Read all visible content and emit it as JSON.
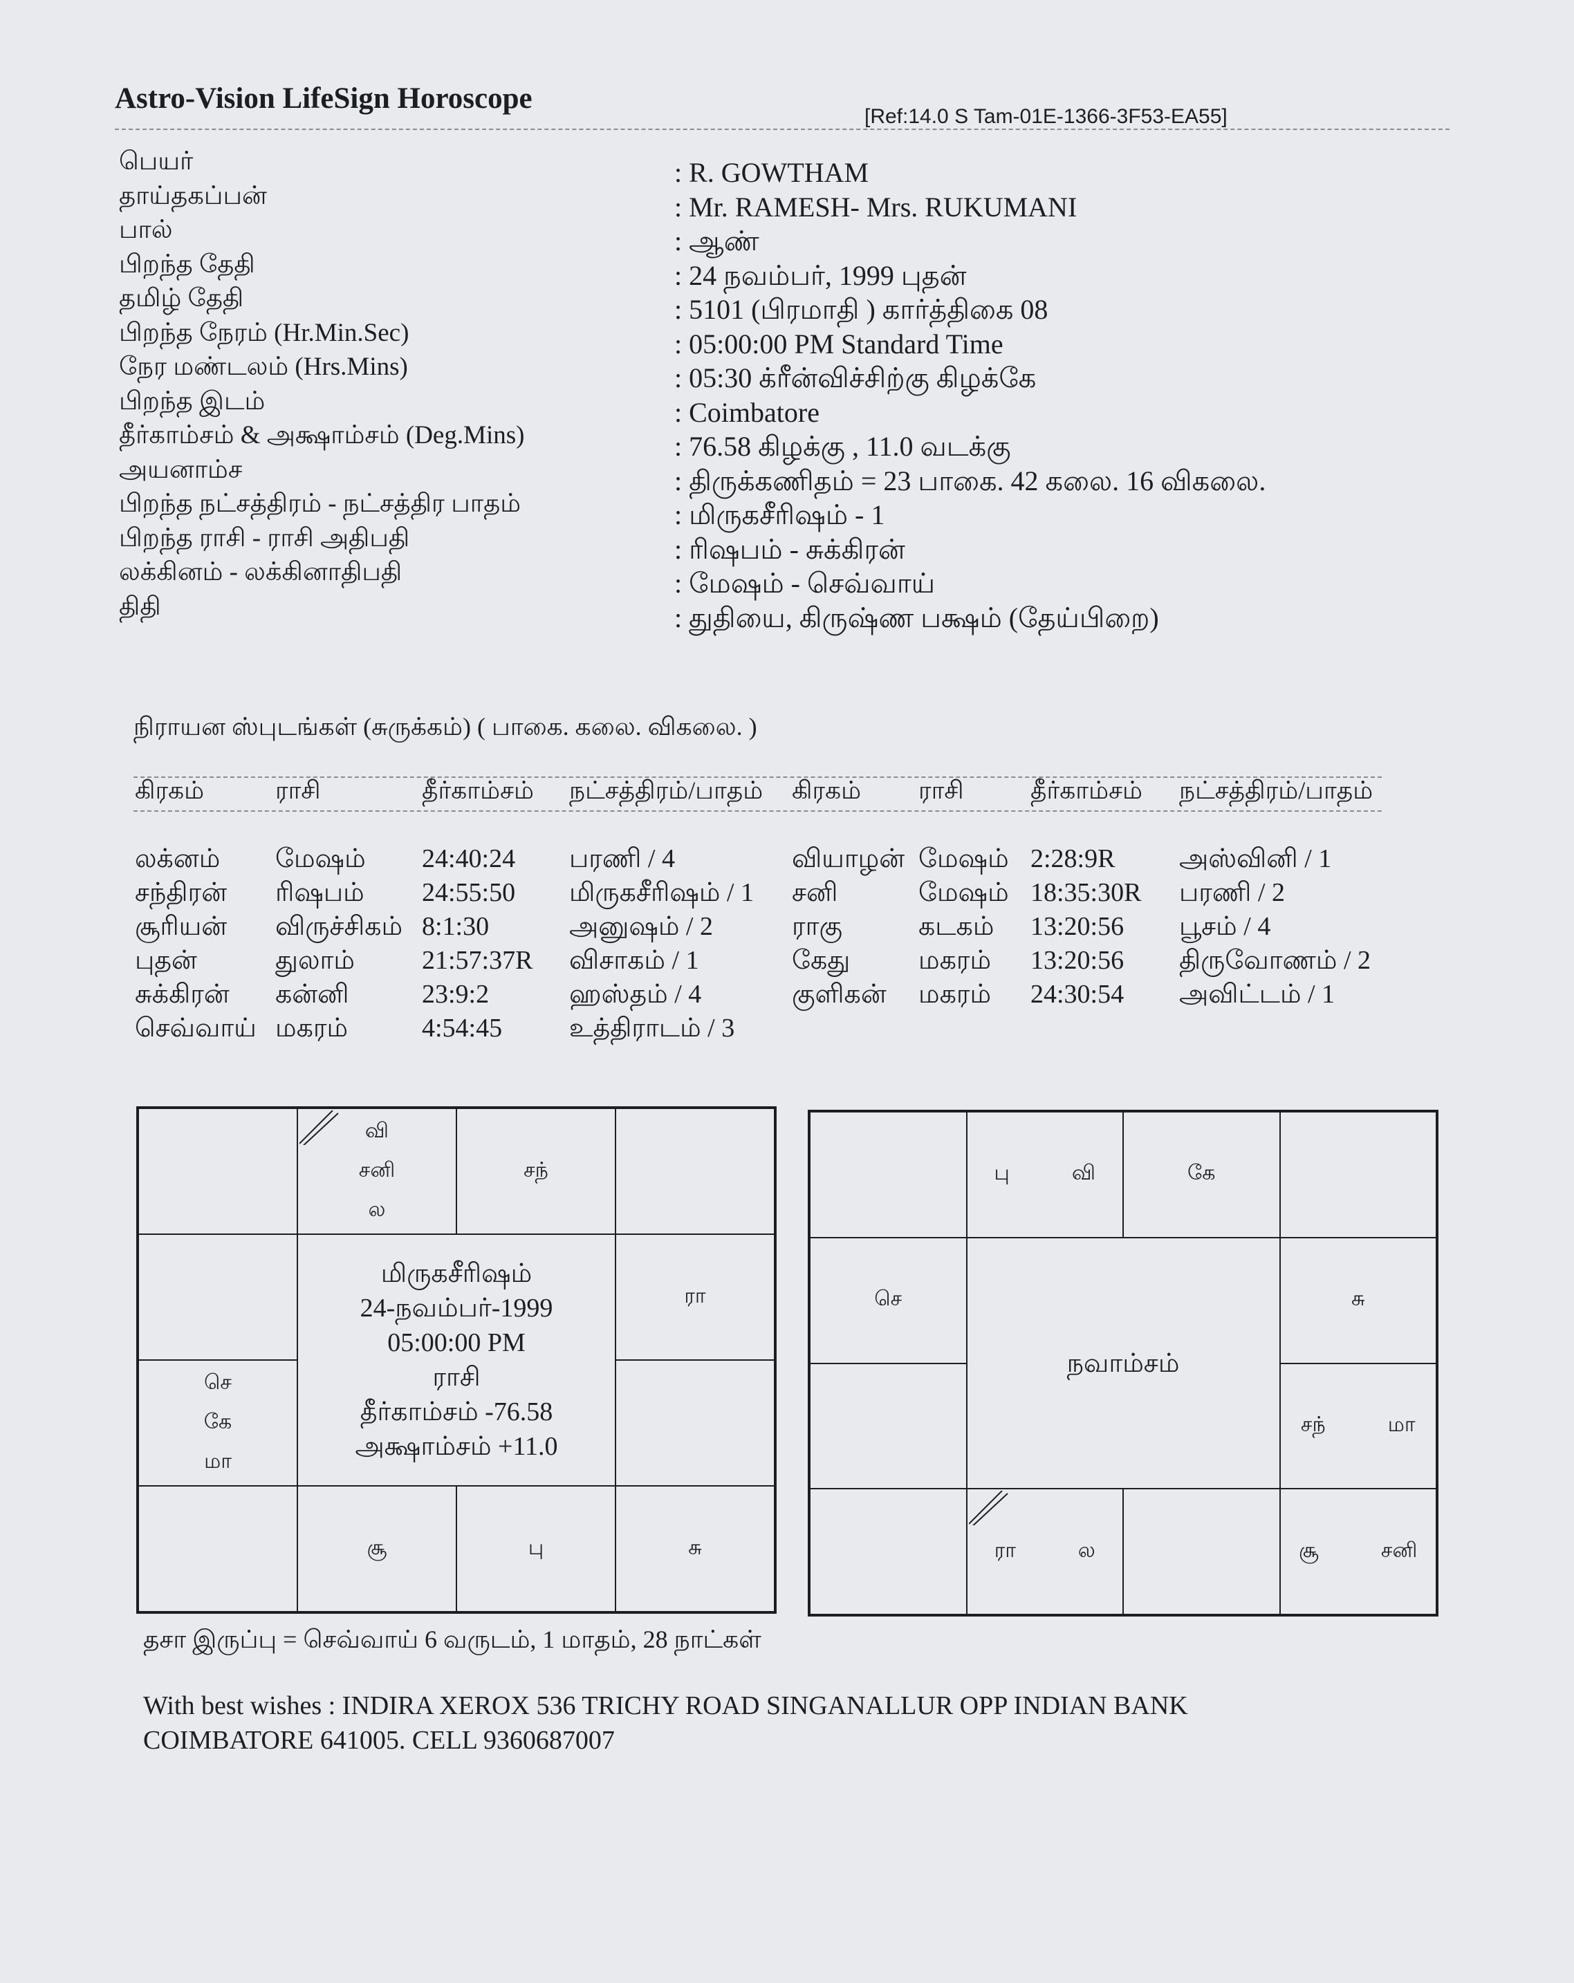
{
  "header": {
    "title": "Astro-Vision LifeSign Horoscope",
    "ref": "[Ref:14.0 S Tam-01E-1366-3F53-EA55]"
  },
  "info": [
    {
      "label": "பெயர்",
      "value": ": R. GOWTHAM"
    },
    {
      "label": "தாய்தகப்பன்",
      "value": ": Mr. RAMESH- Mrs. RUKUMANI"
    },
    {
      "label": "பால்",
      "value": ": ஆண்"
    },
    {
      "label": "பிறந்த தேதி",
      "value": ": 24 நவம்பர், 1999  புதன்"
    },
    {
      "label": "தமிழ் தேதி",
      "value": ": 5101 (பிரமாதி ) கார்த்திகை  08"
    },
    {
      "label": "பிறந்த நேரம் (Hr.Min.Sec)",
      "value": ": 05:00:00 PM Standard Time"
    },
    {
      "label": "நேர மண்டலம் (Hrs.Mins)",
      "value": ": 05:30 க்ரீன்விச்சிற்கு  கிழக்கே"
    },
    {
      "label": "பிறந்த இடம்",
      "value": ": Coimbatore"
    },
    {
      "label": "தீர்காம்சம் & அக்ஷாம்சம் (Deg.Mins)",
      "value": ": 76.58 கிழக்கு , 11.0 வடக்கு"
    },
    {
      "label": "அயனாம்ச",
      "value": ": திருக்கணிதம் = 23 பாகை. 42 கலை. 16 விகலை."
    },
    {
      "label": "பிறந்த நட்சத்திரம் - நட்சத்திர பாதம்",
      "value": ": மிருகசீரிஷம் -  1"
    },
    {
      "label": "பிறந்த ராசி - ராசி அதிபதி",
      "value": ": ரிஷபம் - சுக்கிரன்"
    },
    {
      "label": "லக்கினம் - லக்கினாதிபதி",
      "value": ": மேஷம் - செவ்வாய்"
    },
    {
      "label": "திதி",
      "value": ": துதியை, கிருஷ்ண பக்ஷம் (தேய்பிறை)"
    }
  ],
  "planets": {
    "heading": "நிராயன ஸ்புடங்கள் (சுருக்கம்) ( பாகை. கலை. விகலை. )",
    "columns": [
      "கிரகம்",
      "ராசி",
      "தீர்காம்சம்",
      "நட்சத்திரம்/பாதம்",
      "கிரகம்",
      "ராசி",
      "தீர்காம்சம்",
      "நட்சத்திரம்/பாதம்"
    ],
    "left": [
      [
        "லக்னம்",
        "மேஷம்",
        "24:40:24",
        "பரணி / 4"
      ],
      [
        "சந்திரன்",
        "ரிஷபம்",
        "24:55:50",
        "மிருகசீரிஷம் / 1"
      ],
      [
        "சூரியன்",
        "விருச்சிகம்",
        "8:1:30",
        "அனுஷம் / 2"
      ],
      [
        "புதன்",
        "துலாம்",
        "21:57:37R",
        "விசாகம் / 1"
      ],
      [
        "சுக்கிரன்",
        "கன்னி",
        "23:9:2",
        "ஹஸ்தம் / 4"
      ],
      [
        "செவ்வாய்",
        "மகரம்",
        "4:54:45",
        "உத்திராடம் / 3"
      ]
    ],
    "right": [
      [
        "வியாழன்",
        "மேஷம்",
        "2:28:9R",
        "அஸ்வினி / 1"
      ],
      [
        "சனி",
        "மேஷம்",
        "18:35:30R",
        "பரணி / 2"
      ],
      [
        "ராகு",
        "கடகம்",
        "13:20:56",
        "பூசம் / 4"
      ],
      [
        "கேது",
        "மகரம்",
        "13:20:56",
        "திருவோணம் / 2"
      ],
      [
        "குளிகன்",
        "மகரம்",
        "24:30:54",
        "அவிட்டம் / 1"
      ]
    ]
  },
  "rasi_chart": {
    "center": [
      "மிருகசீரிஷம்",
      "24-நவம்பர்-1999",
      "05:00:00 PM",
      "ராசி",
      "தீர்காம்சம்   -76.58",
      "அக்ஷாம்சம்   +11.0"
    ],
    "houses": {
      "pisces": [],
      "aries": [
        "வி",
        "சனி",
        "ல"
      ],
      "taurus": [
        "சந்"
      ],
      "gemini": [],
      "aquarius": [],
      "cancer": [
        "ரா"
      ],
      "capricorn": [
        "செ",
        "கே",
        "மா"
      ],
      "leo": [],
      "sagittarius": [],
      "scorpio": [
        "சூ"
      ],
      "libra": [
        "பு"
      ],
      "virgo": [
        "சு"
      ]
    }
  },
  "navamsa_chart": {
    "center": [
      "நவாம்சம்"
    ],
    "houses": {
      "pisces": [],
      "aries": [
        "பு",
        "வி"
      ],
      "taurus": [
        "கே"
      ],
      "gemini": [],
      "aquarius": [
        "செ"
      ],
      "cancer": [
        "சு"
      ],
      "capricorn": [],
      "leo": [
        "சந்",
        "மா"
      ],
      "sagittarius": [],
      "scorpio": [
        "ரா",
        "ல"
      ],
      "libra": [],
      "virgo": [
        "சூ",
        "சனி"
      ]
    }
  },
  "footer": {
    "dasa": "தசா இருப்பு = செவ்வாய் 6 வருடம், 1 மாதம், 28 நாட்கள்",
    "wishes_line1": "With best wishes : INDIRA XEROX 536 TRICHY ROAD SINGANALLUR OPP INDIAN BANK",
    "wishes_line2": "COIMBATORE 641005. CELL 9360687007"
  }
}
